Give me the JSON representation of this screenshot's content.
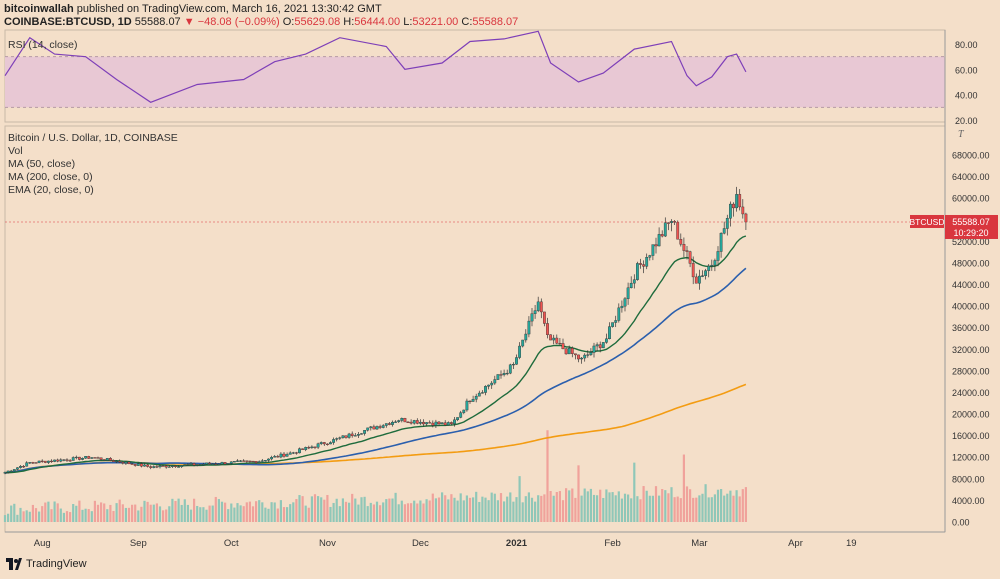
{
  "header": {
    "publisher": "bitcoinwallah",
    "published_text": "published on TradingView.com, March 16, 2021 13:30:42 GMT",
    "symbol": "COINBASE:BTCUSD, 1D",
    "last": "55588.07",
    "change": "▼ −48.08 (−0.09%)",
    "o_label": "O:",
    "o": "55629.08",
    "h_label": "H:",
    "h": "56444.00",
    "l_label": "L:",
    "l": "53221.00",
    "c_label": "C:",
    "c": "55588.07"
  },
  "rsi_label": "RSI (14, close)",
  "price_labels": [
    "Bitcoin / U.S. Dollar, 1D, COINBASE",
    "Vol",
    "MA (50, close)",
    "MA (200, close, 0)",
    "EMA (20, close, 0)"
  ],
  "price_tag": {
    "symbol": "BTCUSD",
    "price": "55588.07",
    "countdown": "10:29:20"
  },
  "footer": {
    "brand": "TradingView"
  },
  "colors": {
    "up": "#26a69a",
    "down": "#ef5350",
    "ema20": "#1e6b3c",
    "ma50": "#2b5fad",
    "ma200": "#f39c12",
    "rsi": "#7e3fb8",
    "rsi_band": "#e8c8d4",
    "bg": "#f4dfc9"
  },
  "chart_data": {
    "type": "candlestick",
    "x_ticks": [
      "Aug",
      "Sep",
      "Oct",
      "Nov",
      "Dec",
      "2021",
      "Feb",
      "Mar",
      "Apr",
      "19"
    ],
    "price_ticks": [
      "68000.00",
      "64000.00",
      "60000.00",
      "56000.00",
      "52000.00",
      "48000.00",
      "44000.00",
      "40000.00",
      "36000.00",
      "32000.00",
      "28000.00",
      "24000.00",
      "20000.00",
      "16000.00",
      "12000.00",
      "8000.00",
      "4000.00",
      "0.00"
    ],
    "rsi_ticks": [
      "80.00",
      "60.00",
      "40.00",
      "20.00"
    ],
    "rsi_range": [
      20,
      90
    ],
    "rsi_bands": [
      30,
      70
    ],
    "key_prices": [
      {
        "date": "Jul 20",
        "price": 9200
      },
      {
        "date": "Jul 28",
        "price": 11000
      },
      {
        "date": "Aug 17",
        "price": 12000
      },
      {
        "date": "Sep 5",
        "price": 10200
      },
      {
        "date": "Oct 10",
        "price": 11300
      },
      {
        "date": "Oct 21",
        "price": 12900
      },
      {
        "date": "Nov 5",
        "price": 15500
      },
      {
        "date": "Nov 24",
        "price": 19000
      },
      {
        "date": "Dec 11",
        "price": 18000
      },
      {
        "date": "Dec 17",
        "price": 22800
      },
      {
        "date": "Dec 31",
        "price": 29000
      },
      {
        "date": "Jan 8",
        "price": 40800
      },
      {
        "date": "Jan 11",
        "price": 34000
      },
      {
        "date": "Jan 22",
        "price": 30000
      },
      {
        "date": "Jan 30",
        "price": 34000
      },
      {
        "date": "Feb 8",
        "price": 46000
      },
      {
        "date": "Feb 20",
        "price": 56000
      },
      {
        "date": "Feb 28",
        "price": 45000
      },
      {
        "date": "Mar 5",
        "price": 48000
      },
      {
        "date": "Mar 13",
        "price": 61000
      },
      {
        "date": "Mar 16",
        "price": 55588
      }
    ],
    "ema20_end": 53000,
    "ma50_end": 47000,
    "ma200_end": 25500,
    "rsi_points": [
      {
        "date": "Jul 20",
        "rsi": 55
      },
      {
        "date": "Jul 28",
        "rsi": 85
      },
      {
        "date": "Aug 5",
        "rsi": 72
      },
      {
        "date": "Aug 15",
        "rsi": 70
      },
      {
        "date": "Aug 25",
        "rsi": 52
      },
      {
        "date": "Sep 5",
        "rsi": 34
      },
      {
        "date": "Sep 20",
        "rsi": 48
      },
      {
        "date": "Oct 5",
        "rsi": 52
      },
      {
        "date": "Oct 15",
        "rsi": 66
      },
      {
        "date": "Oct 25",
        "rsi": 72
      },
      {
        "date": "Nov 5",
        "rsi": 85
      },
      {
        "date": "Nov 20",
        "rsi": 78
      },
      {
        "date": "Nov 26",
        "rsi": 60
      },
      {
        "date": "Dec 8",
        "rsi": 65
      },
      {
        "date": "Dec 17",
        "rsi": 82
      },
      {
        "date": "Dec 28",
        "rsi": 84
      },
      {
        "date": "Jan 8",
        "rsi": 90
      },
      {
        "date": "Jan 12",
        "rsi": 65
      },
      {
        "date": "Jan 21",
        "rsi": 50
      },
      {
        "date": "Jan 29",
        "rsi": 57
      },
      {
        "date": "Feb 8",
        "rsi": 76
      },
      {
        "date": "Feb 20",
        "rsi": 82
      },
      {
        "date": "Feb 25",
        "rsi": 55
      },
      {
        "date": "Feb 28",
        "rsi": 47
      },
      {
        "date": "Mar 5",
        "rsi": 54
      },
      {
        "date": "Mar 10",
        "rsi": 70
      },
      {
        "date": "Mar 13",
        "rsi": 72
      },
      {
        "date": "Mar 16",
        "rsi": 58
      }
    ]
  }
}
